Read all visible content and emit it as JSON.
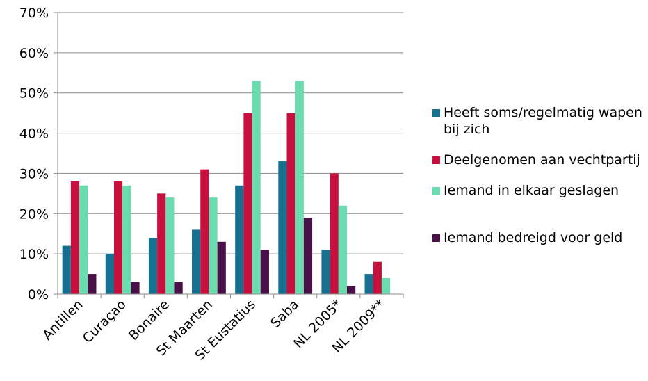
{
  "chart_data": {
    "type": "bar",
    "title": "",
    "xlabel": "",
    "ylabel": "",
    "ylim": [
      0,
      70
    ],
    "yticks": [
      "0%",
      "10%",
      "20%",
      "30%",
      "40%",
      "50%",
      "60%",
      "70%"
    ],
    "grid": true,
    "legend_position": "right",
    "categories": [
      "Antillen",
      "Curaçao",
      "Bonaire",
      "St Maarten",
      "St Eustatius",
      "Saba",
      "NL 2005*",
      "NL 2009**"
    ],
    "series": [
      {
        "name": "Heeft soms/regelmatig wapen bij zich",
        "color": "#17708f",
        "values": [
          12,
          10,
          14,
          16,
          27,
          33,
          11,
          5
        ]
      },
      {
        "name": "Deelgenomen aan vechtpartij",
        "color": "#c8103e",
        "values": [
          28,
          28,
          25,
          31,
          45,
          45,
          30,
          8
        ]
      },
      {
        "name": "Iemand in elkaar geslagen",
        "color": "#6bdcaf",
        "values": [
          27,
          27,
          24,
          24,
          53,
          53,
          22,
          4
        ]
      },
      {
        "name": "Iemand bedreigd voor geld",
        "color": "#4a1148",
        "values": [
          5,
          3,
          3,
          13,
          11,
          19,
          2,
          null
        ]
      }
    ]
  }
}
